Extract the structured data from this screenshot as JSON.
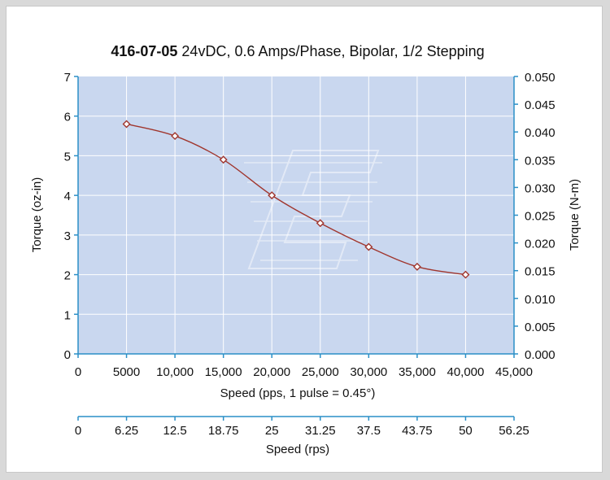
{
  "chart_data": {
    "type": "line",
    "title_bold": "416-07-05",
    "title_rest": " 24vDC, 0.6 Amps/Phase, Bipolar, 1/2 Stepping",
    "xlabel": "Speed (pps, 1 pulse = 0.45°)",
    "xlabel2": "Speed (rps)",
    "ylabel_left": "Torque (oz-in)",
    "ylabel_right": "Torque (N-m)",
    "xlim": [
      0,
      45000
    ],
    "ylim_left": [
      0,
      7
    ],
    "ylim_right": [
      0,
      0.05
    ],
    "x_ticks": [
      "0",
      "5000",
      "10,000",
      "15,000",
      "20,000",
      "25,000",
      "30,000",
      "35,000",
      "40,000",
      "45,000"
    ],
    "x_tick_values": [
      0,
      5000,
      10000,
      15000,
      20000,
      25000,
      30000,
      35000,
      40000,
      45000
    ],
    "x2_ticks": [
      "0",
      "6.25",
      "12.5",
      "18.75",
      "25",
      "31.25",
      "37.5",
      "43.75",
      "50",
      "56.25"
    ],
    "y_left_ticks": [
      "0",
      "1",
      "2",
      "3",
      "4",
      "5",
      "6",
      "7"
    ],
    "y_left_tick_values": [
      0,
      1,
      2,
      3,
      4,
      5,
      6,
      7
    ],
    "y_right_ticks": [
      "0.000",
      "0.005",
      "0.010",
      "0.015",
      "0.020",
      "0.025",
      "0.030",
      "0.035",
      "0.040",
      "0.045",
      "0.050"
    ],
    "y_right_tick_values": [
      0,
      0.005,
      0.01,
      0.015,
      0.02,
      0.025,
      0.03,
      0.035,
      0.04,
      0.045,
      0.05
    ],
    "grid": true,
    "series": [
      {
        "x": [
          5000,
          10000,
          15000,
          20000,
          25000,
          30000,
          35000,
          40000
        ],
        "y": [
          5.8,
          5.5,
          4.9,
          4.0,
          3.3,
          2.7,
          2.2,
          2.0
        ]
      }
    ],
    "colors": {
      "plot_bg": "#c9d7ef",
      "grid": "#ffffff",
      "axis": "#2a8fc7",
      "line": "#a0362e",
      "marker_fill": "#ffffff"
    }
  }
}
